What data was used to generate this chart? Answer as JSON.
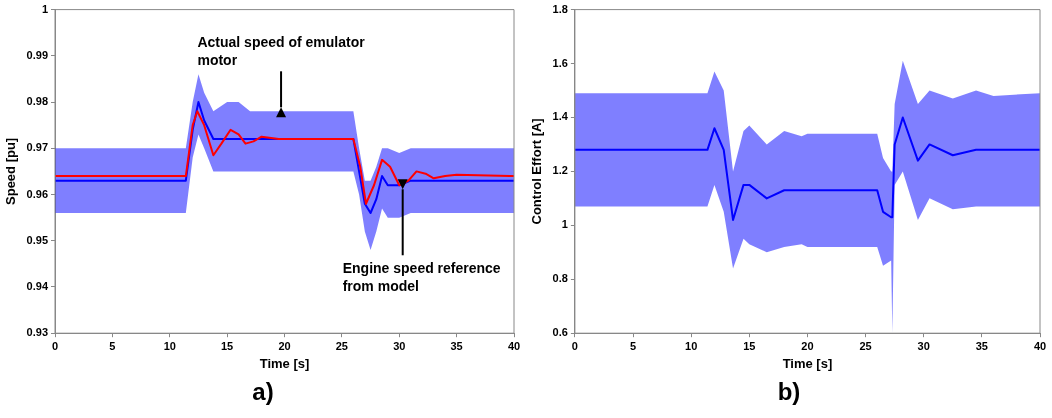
{
  "chart_data": [
    {
      "type": "line",
      "xlabel": "Time [s]",
      "ylabel": "Speed [pu]",
      "xlim": [
        0,
        40
      ],
      "xticks": [
        0,
        5,
        10,
        15,
        20,
        25,
        30,
        35,
        40
      ],
      "ylim": [
        0.93,
        1
      ],
      "yticks": [
        0.93,
        0.94,
        0.95,
        0.96,
        0.97,
        0.98,
        0.99,
        1
      ],
      "grid": false,
      "legend": false,
      "annotations": [
        {
          "text": "Actual speed of emulator motor",
          "x": 19.7,
          "y": 0.978
        },
        {
          "text": "Engine speed reference from model",
          "x": 30.3,
          "y": 0.962
        },
        "a)"
      ],
      "series": [
        {
          "color": "#0000ff",
          "x": [
            0,
            11.4,
            12,
            12.5,
            13,
            13.8,
            15,
            16,
            17,
            20,
            26,
            26.5,
            27,
            27.5,
            28,
            28.5,
            29,
            30,
            31,
            35,
            40
          ],
          "lower": [
            0.956,
            0.956,
            0.968,
            0.973,
            0.97,
            0.965,
            0.965,
            0.965,
            0.965,
            0.965,
            0.965,
            0.96,
            0.952,
            0.948,
            0.952,
            0.957,
            0.955,
            0.955,
            0.956,
            0.956,
            0.956
          ],
          "upper": [
            0.97,
            0.97,
            0.98,
            0.986,
            0.982,
            0.978,
            0.98,
            0.98,
            0.978,
            0.978,
            0.978,
            0.97,
            0.963,
            0.963,
            0.966,
            0.97,
            0.97,
            0.969,
            0.97,
            0.97,
            0.97
          ],
          "values": [
            0.963,
            0.963,
            0.974,
            0.98,
            0.976,
            0.972,
            0.972,
            0.972,
            0.972,
            0.972,
            0.972,
            0.965,
            0.958,
            0.956,
            0.959,
            0.964,
            0.962,
            0.962,
            0.963,
            0.963,
            0.963
          ]
        },
        {
          "color": "#ff0000",
          "x": [
            0,
            11.4,
            12,
            12.4,
            13,
            13.8,
            14.5,
            15.3,
            16,
            16.6,
            17.3,
            18,
            19.5,
            26,
            26.6,
            27.1,
            27.8,
            28.5,
            29.2,
            30,
            30.8,
            31.5,
            32.3,
            33,
            34,
            35,
            40
          ],
          "values": [
            0.964,
            0.964,
            0.975,
            0.978,
            0.975,
            0.9685,
            0.971,
            0.974,
            0.973,
            0.971,
            0.9715,
            0.9725,
            0.972,
            0.972,
            0.966,
            0.958,
            0.962,
            0.9675,
            0.966,
            0.962,
            0.963,
            0.965,
            0.9645,
            0.9635,
            0.964,
            0.9643,
            0.964
          ]
        }
      ]
    },
    {
      "type": "line",
      "xlabel": "Time [s]",
      "ylabel": "Control Effort [A]",
      "xlim": [
        0,
        40
      ],
      "xticks": [
        0,
        5,
        10,
        15,
        20,
        25,
        30,
        35,
        40
      ],
      "ylim": [
        0.6,
        1.8
      ],
      "yticks": [
        0.6,
        0.8,
        1,
        1.2,
        1.4,
        1.6,
        1.8
      ],
      "grid": false,
      "legend": false,
      "annotations": [
        "b)"
      ],
      "series": [
        {
          "color": "#0000ff",
          "x": [
            0,
            11.4,
            12,
            12.8,
            13.6,
            14.5,
            15,
            16.5,
            18,
            19.5,
            20,
            26,
            26.5,
            27.2,
            27.3,
            27.5,
            28.2,
            29.5,
            30.5,
            32.5,
            34.5,
            36,
            40
          ],
          "lower": [
            1.07,
            1.07,
            1.15,
            1.05,
            0.84,
            0.95,
            0.93,
            0.9,
            0.92,
            0.93,
            0.92,
            0.92,
            0.85,
            0.87,
            0.6,
            1.15,
            1.2,
            1.02,
            1.1,
            1.06,
            1.07,
            1.07,
            1.07
          ],
          "upper": [
            1.49,
            1.49,
            1.57,
            1.5,
            1.2,
            1.35,
            1.37,
            1.3,
            1.35,
            1.33,
            1.34,
            1.34,
            1.25,
            1.2,
            1.2,
            1.45,
            1.61,
            1.45,
            1.5,
            1.47,
            1.5,
            1.48,
            1.49
          ],
          "values": [
            1.28,
            1.28,
            1.36,
            1.28,
            1.02,
            1.15,
            1.15,
            1.1,
            1.13,
            1.13,
            1.13,
            1.13,
            1.05,
            1.03,
            1.03,
            1.3,
            1.4,
            1.24,
            1.3,
            1.26,
            1.28,
            1.28,
            1.28
          ]
        }
      ]
    }
  ]
}
